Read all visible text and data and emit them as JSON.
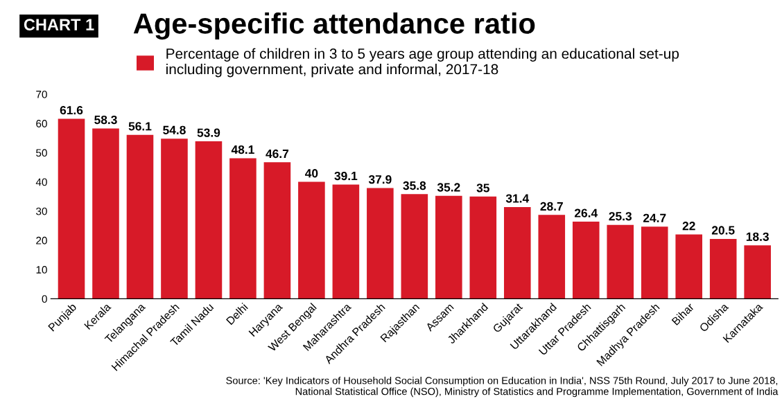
{
  "chart_data": {
    "type": "bar",
    "title": "Age-specific attendance ratio",
    "categories": [
      "Punjab",
      "Kerala",
      "Telangana",
      "Himachal Pradesh",
      "Tamil Nadu",
      "Delhi",
      "Haryana",
      "West Bengal",
      "Maharashtra",
      "Andhra Pradesh",
      "Rajasthan",
      "Assam",
      "Jharkhand",
      "Gujarat",
      "Uttarakhand",
      "Uttar Pradesh",
      "Chhattisgarh",
      "Madhya Pradesh",
      "Bihar",
      "Odisha",
      "Karnataka"
    ],
    "series": [
      {
        "name": "Percentage of children in 3 to 5 years age group attending an educational set-up\nincluding government, private and informal, 2017-18",
        "color": "#d71a28",
        "values": [
          61.6,
          58.3,
          56.1,
          54.8,
          53.9,
          48.1,
          46.7,
          40,
          39.1,
          37.9,
          35.8,
          35.2,
          35,
          31.4,
          28.7,
          26.4,
          25.3,
          24.7,
          22,
          20.5,
          18.3
        ]
      }
    ],
    "ylim": [
      0,
      70
    ],
    "yticks": [
      0,
      10,
      20,
      30,
      40,
      50,
      60,
      70
    ],
    "data_labels": true,
    "legend": "top left",
    "grid": false,
    "annotations": [
      "CHART 1",
      "Source: 'Key Indicators of Household Social Consumption on Education in India', NSS 75th Round, July 2017 to June 2018,\nNational Statistical Office (NSO), Ministry of Statistics and Programme Implementation, Government of India"
    ]
  }
}
